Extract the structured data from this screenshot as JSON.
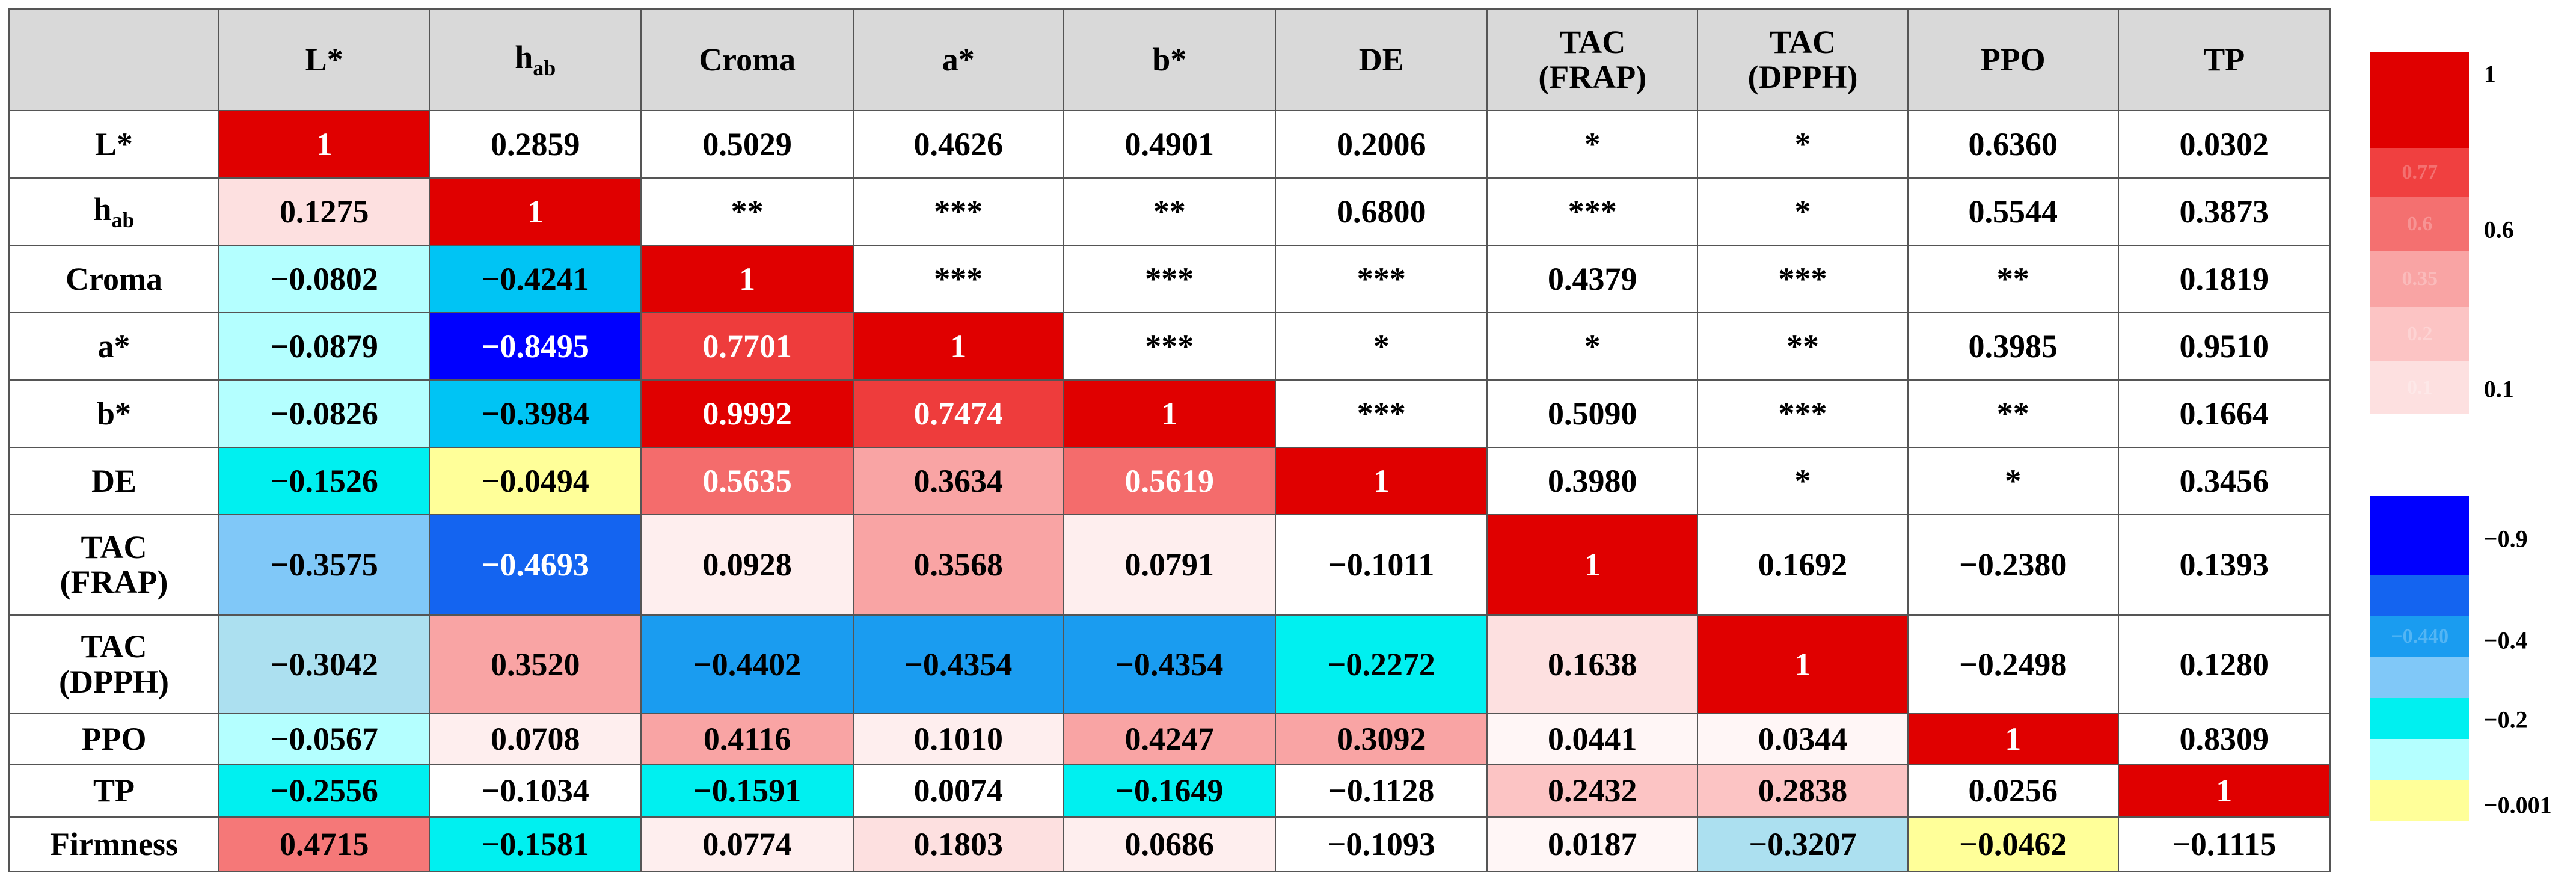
{
  "table": {
    "headers": [
      {
        "text": "L*"
      },
      {
        "text": "h",
        "sub": "ab"
      },
      {
        "text": "Croma"
      },
      {
        "text": "a*"
      },
      {
        "text": "b*"
      },
      {
        "text": "DE"
      },
      {
        "lines": [
          "TAC",
          "(FRAP)"
        ]
      },
      {
        "lines": [
          "TAC",
          "(DPPH)"
        ]
      },
      {
        "text": "PPO"
      },
      {
        "text": "TP"
      }
    ],
    "rows": [
      {
        "label": {
          "text": "L*"
        },
        "cells": [
          "1",
          "0.2859",
          "0.5029",
          "0.4626",
          "0.4901",
          "0.2006",
          "*",
          "*",
          "0.6360",
          "0.0302"
        ],
        "fills": [
          "#e00000",
          "#ffffff",
          "#ffffff",
          "#ffffff",
          "#ffffff",
          "#ffffff",
          "#ffffff",
          "#ffffff",
          "#ffffff",
          "#ffffff"
        ]
      },
      {
        "label": {
          "text": "h",
          "sub": "ab"
        },
        "cells": [
          "0.1275",
          "1",
          "**",
          "***",
          "**",
          "0.6800",
          "***",
          "*",
          "0.5544",
          "0.3873"
        ],
        "fills": [
          "#fde0e0",
          "#e00000",
          "#ffffff",
          "#ffffff",
          "#ffffff",
          "#ffffff",
          "#ffffff",
          "#ffffff",
          "#ffffff",
          "#ffffff"
        ]
      },
      {
        "label": {
          "text": "Croma"
        },
        "cells": [
          "−0.0802",
          "−0.4241",
          "1",
          "***",
          "***",
          "***",
          "0.4379",
          "***",
          "**",
          "0.1819"
        ],
        "fills": [
          "#b4ffff",
          "#00c4f4",
          "#e00000",
          "#ffffff",
          "#ffffff",
          "#ffffff",
          "#ffffff",
          "#ffffff",
          "#ffffff",
          "#ffffff"
        ]
      },
      {
        "label": {
          "text": "a*"
        },
        "cells": [
          "−0.0879",
          "−0.8495",
          "0.7701",
          "1",
          "***",
          "*",
          "*",
          "**",
          "0.3985",
          "0.9510"
        ],
        "fills": [
          "#b4ffff",
          "#0000ff",
          "#ee3c3c",
          "#e00000",
          "#ffffff",
          "#ffffff",
          "#ffffff",
          "#ffffff",
          "#ffffff",
          "#ffffff"
        ]
      },
      {
        "label": {
          "text": "b*"
        },
        "cells": [
          "−0.0826",
          "−0.3984",
          "0.9992",
          "0.7474",
          "1",
          "***",
          "0.5090",
          "***",
          "**",
          "0.1664"
        ],
        "fills": [
          "#b4ffff",
          "#00c4f4",
          "#e00000",
          "#ee3c3c",
          "#e00000",
          "#ffffff",
          "#ffffff",
          "#ffffff",
          "#ffffff",
          "#ffffff"
        ]
      },
      {
        "label": {
          "text": "DE"
        },
        "cells": [
          "−0.1526",
          "−0.0494",
          "0.5635",
          "0.3634",
          "0.5619",
          "1",
          "0.3980",
          "*",
          "*",
          "0.3456"
        ],
        "fills": [
          "#00f0f0",
          "#ffff99",
          "#f46c6c",
          "#f9a4a4",
          "#f46c6c",
          "#e00000",
          "#ffffff",
          "#ffffff",
          "#ffffff",
          "#ffffff"
        ]
      },
      {
        "label": {
          "lines": [
            "TAC",
            "(FRAP)"
          ]
        },
        "cells": [
          "−0.3575",
          "−0.4693",
          "0.0928",
          "0.3568",
          "0.0791",
          "−0.1011",
          "1",
          "0.1692",
          "−0.2380",
          "0.1393"
        ],
        "fills": [
          "#80c8f8",
          "#1464f0",
          "#feeeee",
          "#f9a4a4",
          "#feeeee",
          "#ffffff",
          "#e00000",
          "#ffffff",
          "#ffffff",
          "#ffffff"
        ]
      },
      {
        "label": {
          "lines": [
            "TAC",
            "(DPPH)"
          ]
        },
        "cells": [
          "−0.3042",
          "0.3520",
          "−0.4402",
          "−0.4354",
          "−0.4354",
          "−0.2272",
          "0.1638",
          "1",
          "−0.2498",
          "0.1280"
        ],
        "fills": [
          "#ace0f0",
          "#f9a4a4",
          "#1a9cf0",
          "#1a9cf0",
          "#1a9cf0",
          "#00f0f0",
          "#fde0e0",
          "#e00000",
          "#ffffff",
          "#ffffff"
        ]
      },
      {
        "label": {
          "text": "PPO"
        },
        "cells": [
          "−0.0567",
          "0.0708",
          "0.4116",
          "0.1010",
          "0.4247",
          "0.3092",
          "0.0441",
          "0.0344",
          "1",
          "0.8309"
        ],
        "fills": [
          "#b4ffff",
          "#feeeee",
          "#f9a4a4",
          "#feeeee",
          "#f9a4a4",
          "#f9a4a4",
          "#fff6f6",
          "#fff6f6",
          "#e00000",
          "#ffffff"
        ]
      },
      {
        "label": {
          "text": "TP"
        },
        "cells": [
          "−0.2556",
          "−0.1034",
          "−0.1591",
          "0.0074",
          "−0.1649",
          "−0.1128",
          "0.2432",
          "0.2838",
          "0.0256",
          "1"
        ],
        "fills": [
          "#00f0f0",
          "#ffffff",
          "#00f0f0",
          "#ffffff",
          "#00f0f0",
          "#ffffff",
          "#fcc4c4",
          "#fcc4c4",
          "#ffffff",
          "#e00000"
        ]
      },
      {
        "label": {
          "text": "Firmness"
        },
        "cells": [
          "0.4715",
          "−0.1581",
          "0.0774",
          "0.1803",
          "0.0686",
          "−0.1093",
          "0.0187",
          "−0.3207",
          "−0.0462",
          "−0.1115"
        ],
        "fills": [
          "#f57878",
          "#00f0f0",
          "#feeeee",
          "#fde0e0",
          "#feeeee",
          "#ffffff",
          "#fff6f6",
          "#ace0f0",
          "#ffff99",
          "#ffffff"
        ]
      }
    ]
  },
  "legend": {
    "positive": {
      "swatches": [
        {
          "fill": "#e00000"
        },
        {
          "fill": "#f04040",
          "text": "0.77"
        },
        {
          "fill": "#f47070",
          "text": "0.6"
        },
        {
          "fill": "#f9a4a4",
          "text": "0.35"
        },
        {
          "fill": "#fcc4c4",
          "text": "0.2"
        },
        {
          "fill": "#fde0e0",
          "text": "0.1"
        }
      ],
      "labels": [
        "1",
        "0.6",
        "0.1"
      ]
    },
    "negative": {
      "swatches": [
        {
          "fill": "#0000ff"
        },
        {
          "fill": "#1464f0"
        },
        {
          "fill": "#1a9cf0",
          "text": "−0.440"
        },
        {
          "fill": "#80c8f8"
        },
        {
          "fill": "#00f0f0"
        },
        {
          "fill": "#b4ffff"
        },
        {
          "fill": "#ffff99"
        }
      ],
      "labels": [
        "−0.9",
        "−0.4",
        "−0.2",
        "−0.001"
      ]
    }
  }
}
